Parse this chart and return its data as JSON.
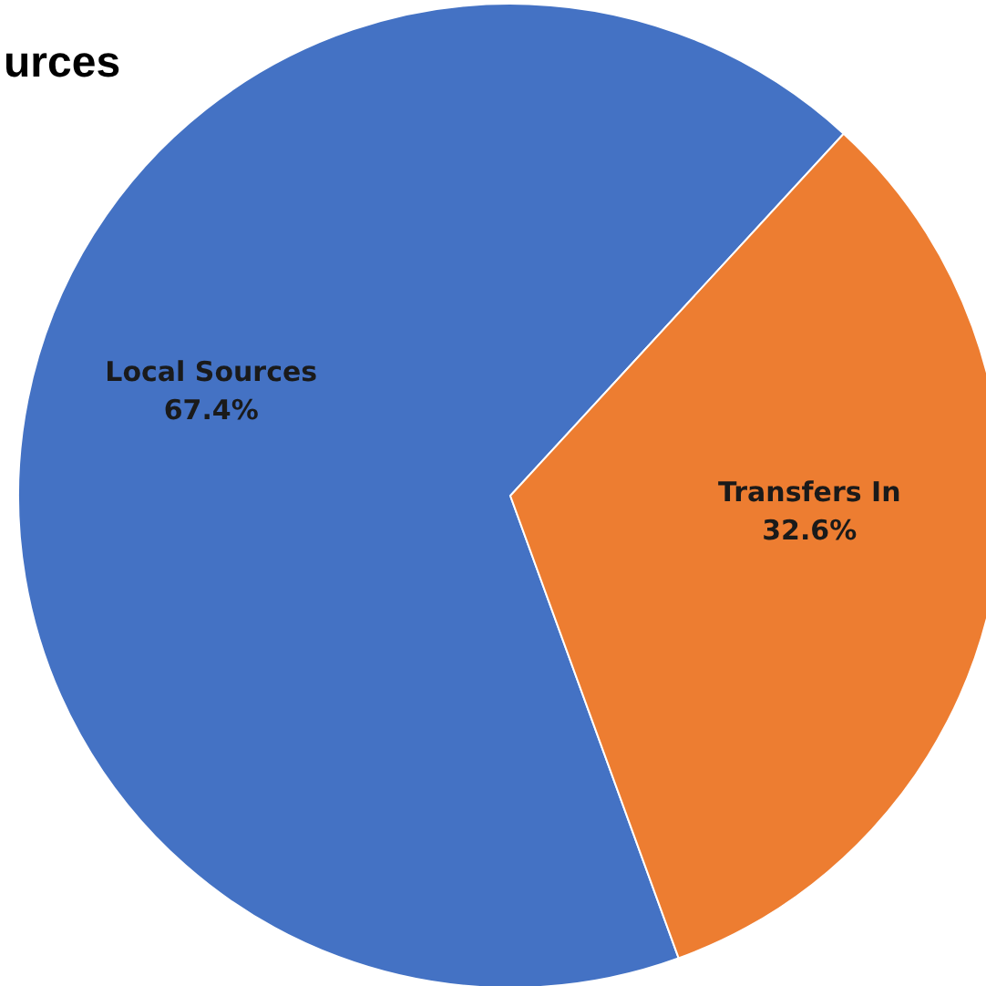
{
  "chart_data": {
    "type": "pie",
    "title": "urces",
    "categories": [
      "Local Sources",
      "Transfers In"
    ],
    "values": [
      67.4,
      32.6
    ],
    "colors": [
      "#4472c4",
      "#ed7d31"
    ],
    "value_labels": [
      "67.4%",
      "32.6%"
    ],
    "legend": false
  }
}
